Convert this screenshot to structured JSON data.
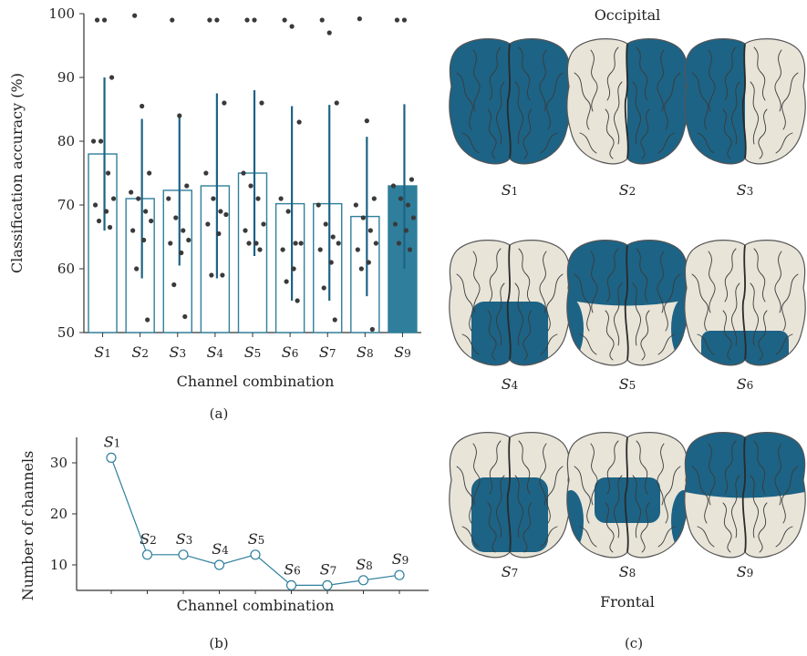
{
  "colors": {
    "accent": "#2f7f9c",
    "region": "#1d6385",
    "brain": "#e8e4d8",
    "outline": "#555555",
    "dot": "#3a3a3a"
  },
  "panel_a_label": "(a)",
  "panel_b_label": "(b)",
  "panel_c_label": "(c)",
  "chart_data": [
    {
      "type": "bar",
      "panel": "(a)",
      "title": "",
      "xlabel": "Channel combination",
      "ylabel": "Classification accuracy (%)",
      "ylim": [
        50,
        100
      ],
      "yticks": [
        50,
        60,
        70,
        80,
        90,
        100
      ],
      "categories": [
        "S1",
        "S2",
        "S3",
        "S4",
        "S5",
        "S6",
        "S7",
        "S8",
        "S9"
      ],
      "values": [
        78,
        71,
        72.3,
        73,
        75,
        70.2,
        70.2,
        68.2,
        73
      ],
      "error_high": [
        90,
        83.5,
        84,
        87.5,
        88,
        85.5,
        85.7,
        80.7,
        85.8
      ],
      "error_low": [
        66,
        58.5,
        60.5,
        58.5,
        62,
        55,
        55,
        55.7,
        60
      ],
      "highlight_index": 8,
      "points": [
        [
          99,
          99,
          90,
          80,
          80,
          75,
          71,
          70,
          69,
          67.5,
          66.5
        ],
        [
          99.7,
          85.5,
          75,
          72,
          71,
          69,
          67.5,
          66,
          64.5,
          60,
          52
        ],
        [
          99,
          84,
          73,
          71,
          68,
          66,
          64.5,
          64,
          62.5,
          57.5,
          52.5
        ],
        [
          99,
          99,
          86,
          75,
          71,
          69,
          68.5,
          67,
          65.5,
          59,
          59
        ],
        [
          99,
          99,
          86,
          75,
          73,
          71,
          67,
          66,
          64,
          64,
          63
        ],
        [
          99,
          98,
          83,
          71,
          69,
          64,
          64,
          63,
          60,
          58,
          55
        ],
        [
          99,
          97,
          86,
          70,
          67,
          65,
          64,
          63,
          61,
          57,
          52
        ],
        [
          99.2,
          83.2,
          71,
          70,
          68,
          66,
          64,
          63,
          61,
          60,
          50.5
        ],
        [
          99,
          99,
          74,
          73,
          71,
          70,
          68,
          67,
          66,
          64,
          63
        ]
      ]
    },
    {
      "type": "line",
      "panel": "(b)",
      "title": "",
      "xlabel": "Channel combination",
      "ylabel": "Number of channels",
      "yticks": [
        10,
        20,
        30
      ],
      "ylim": [
        5,
        35
      ],
      "categories": [
        "S1",
        "S2",
        "S3",
        "S4",
        "S5",
        "S6",
        "S7",
        "S8",
        "S9"
      ],
      "values": [
        31,
        12,
        12,
        10,
        12,
        6,
        6,
        7,
        8
      ],
      "series": [
        {
          "values": [
            31,
            12,
            12,
            10,
            12,
            6,
            6,
            7,
            8
          ]
        }
      ]
    }
  ],
  "brain_panel": {
    "top_label": "Occipital",
    "bottom_label": "Frontal",
    "brains": [
      {
        "label": "S1",
        "regions": [
          "left",
          "right"
        ]
      },
      {
        "label": "S2",
        "regions": [
          "right"
        ]
      },
      {
        "label": "S3",
        "regions": [
          "left"
        ]
      },
      {
        "label": "S4",
        "regions": [
          "central-lower"
        ]
      },
      {
        "label": "S5",
        "regions": [
          "occipital-band",
          "temporal-left",
          "temporal-right"
        ]
      },
      {
        "label": "S6",
        "regions": [
          "frontal-lower"
        ]
      },
      {
        "label": "S7",
        "regions": [
          "central-mid"
        ]
      },
      {
        "label": "S8",
        "regions": [
          "central-small",
          "temporal-left",
          "temporal-right"
        ]
      },
      {
        "label": "S9",
        "regions": [
          "occipital-band"
        ]
      }
    ]
  }
}
